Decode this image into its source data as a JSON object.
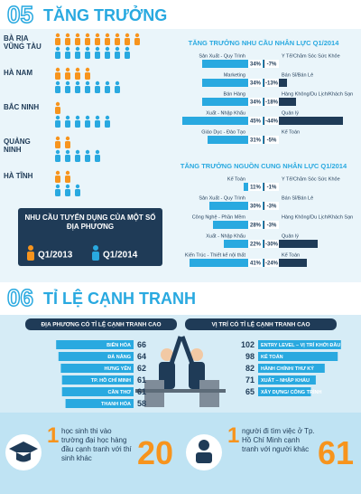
{
  "section5": {
    "number": "05",
    "title": "TĂNG TRƯỞNG"
  },
  "pictogram": {
    "provinces": [
      "BÀ RỊA VŨNG TÀU",
      "HÀ NAM",
      "BẮC NINH",
      "QUẢNG NINH",
      "HÀ TĨNH"
    ],
    "series": [
      {
        "name": "Q1/2013",
        "color": "#f7941d",
        "values": [
          9,
          4,
          1,
          2,
          2
        ]
      },
      {
        "name": "Q1/2014",
        "color": "#29a9e0",
        "values": [
          8,
          7,
          6,
          5,
          3
        ]
      }
    ],
    "legend_title": "NHU CẦU TUYỂN DỤNG CỦA MỘT SỐ ĐỊA PHƯƠNG"
  },
  "demand": {
    "title": "TĂNG TRƯỞNG NHU CẦU NHÂN LỰC Q1/2014",
    "positive": {
      "categories": [
        "Sản Xuất - Quy Trình",
        "Marketing",
        "Bán Hàng",
        "Xuất - Nhập Khẩu",
        "Giáo Dục - Đào Tạo"
      ],
      "values": [
        34,
        34,
        34,
        45,
        31
      ],
      "value_labels": [
        "34%",
        "34%",
        "34%",
        "45%",
        "31%"
      ]
    },
    "negative": {
      "categories": [
        "Y Tế/Chăm Sóc Sức Khỏe",
        "Bán Sỉ/Bán Lẻ",
        "Hàng Không/Du Lịch/Khách Sạn",
        "Quản lý",
        "Kế Toán"
      ],
      "values": [
        -7,
        -13,
        -18,
        -44,
        -5
      ],
      "value_labels": [
        "-7%",
        "-13%",
        "-18%",
        "-44%",
        "-5%"
      ]
    }
  },
  "supply": {
    "title": "TĂNG TRƯỞNG NGUỒN CUNG NHÂN LỰC Q1/2014",
    "positive": {
      "categories": [
        "Kế Toán",
        "Sản Xuất - Quy Trình",
        "Công Nghệ - Phần Mềm",
        "Xuất - Nhập Khẩu",
        "Kiến Trúc - Thiết kế nội thất"
      ],
      "values": [
        11,
        30,
        28,
        22,
        41
      ],
      "value_labels": [
        "11%",
        "30%",
        "28%",
        "22%",
        "41%"
      ]
    },
    "negative": {
      "categories": [
        "Y Tế/Chăm Sóc Sức Khỏe",
        "Bán Sỉ/Bán Lẻ",
        "Hàng Không/Du Lịch/Khách Sạn",
        "Quản lý",
        "Kế Toán"
      ],
      "values": [
        -1,
        -3,
        -3,
        -30,
        -24
      ],
      "value_labels": [
        "-1%",
        "-3%",
        "-3%",
        "-30%",
        "-24%"
      ]
    }
  },
  "section6": {
    "number": "06",
    "title": "TỈ LỆ CẠNH TRANH"
  },
  "regions": {
    "title": "ĐỊA PHƯƠNG CÓ TỈ LỆ CẠNH TRANH CAO",
    "categories": [
      "BIÊN HÒA",
      "ĐÀ NẴNG",
      "HƯNG YÊN",
      "TP. HỒ CHÍ MINH",
      "CẦN THƠ",
      "THANH HÓA"
    ],
    "values": [
      66,
      64,
      62,
      61,
      61,
      58
    ]
  },
  "positions": {
    "title": "VỊ TRÍ CÓ TỈ LỆ CẠNH TRANH CAO",
    "categories": [
      "ENTRY LEVEL – VỊ TRÍ KHỞI ĐẦU",
      "KẾ TOÁN",
      "HÀNH CHÍNH/ THƯ KÝ",
      "XUẤT – NHẬP KHẨU",
      "XÂY DỰNG/ CÔNG TRÌNH"
    ],
    "values": [
      102,
      98,
      82,
      71,
      65
    ]
  },
  "facts": [
    {
      "number": 1,
      "text": "học sinh thi vào trường đại học hàng đầu cạnh tranh với thí sinh khác",
      "value": 20
    },
    {
      "number": 1,
      "text": "người đi tìm việc ở Tp. Hồ Chí Minh cạnh tranh với người khác",
      "value": 61
    }
  ]
}
